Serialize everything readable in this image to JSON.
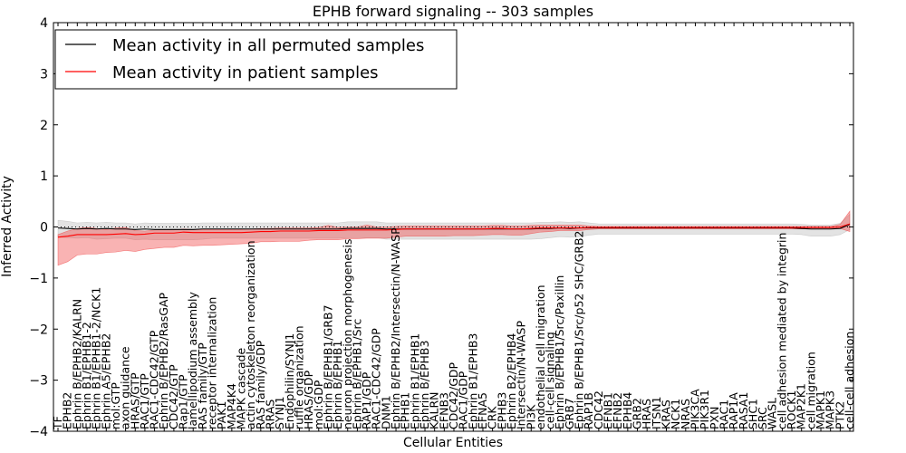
{
  "chart_data": {
    "type": "line",
    "title": "EPHB forward signaling -- 303 samples",
    "xlabel": "Cellular Entities",
    "ylabel": "Inferred Activity",
    "ylim": [
      -4,
      4
    ],
    "yticks": [
      "−4",
      "−3",
      "−2",
      "−1",
      "0",
      "1",
      "2",
      "3",
      "4"
    ],
    "ytick_values": [
      -4,
      -3,
      -2,
      -1,
      0,
      1,
      2,
      3,
      4
    ],
    "grid": false,
    "legend_position": "top-left",
    "categories": [
      "TF",
      "EPHB2",
      "Ephrin B/EPHB2/KALRN",
      "Ephrin B1/EPHB1-2",
      "Ephrin B1/EPHB1-2/NCK1",
      "Ephrin A5/EPHB2",
      "mol:GTP",
      "axon guidance",
      "HRAS/GTP",
      "RAC1/GTP",
      "RAC1-CDC42/GTP",
      "Ephrin B/EPHB2/RasGAP",
      "CDC42/GTP",
      "Rap1/GTP",
      "lamellipodium assembly",
      "RAS family/GTP",
      "receptor internalization",
      "PAK1",
      "MAP4K4",
      "MAPK cascade",
      "actin cytoskeleton reorganization",
      "RAS family/GDP",
      "RRAS",
      "SYNJ1",
      "Endophilin/SYNJ1",
      "ruffle organization",
      "HRAS/GDP",
      "mol:GDP",
      "Ephrin B/EPHB1/GRB7",
      "Ephrin B/EPHB1",
      "neuron projection morphogenesis",
      "Ephrin B/EPHB1/Src",
      "RAP1/GDP",
      "RAC1-CDC42/GDP",
      "DNM1",
      "Ephrin B/EPHB2/Intersectin/N-WASP",
      "EPHB1",
      "Ephrin B1/EPHB1",
      "Ephrin B/EPHB3",
      "KALRN",
      "EFNB3",
      "CDC42/GDP",
      "RAC1/GDP",
      "Ephrin B1/EPHB3",
      "EFNA5",
      "CRK",
      "EPHB3",
      "Ephrin B2/EPHB4",
      "Intersectin/N-WASP",
      "PI3K",
      "endothelial cell migration",
      "cell-cell signaling",
      "Ephrin B/EPHB1/Src/Paxillin",
      "GRB7",
      "Ephrin B/EPHB1/Src/p52 SHC/GRB2",
      "RAP1B",
      "CDC42",
      "EFNB1",
      "EFNB2",
      "EPHB4",
      "GRB2",
      "HRAS",
      "ITSN1",
      "KRAS",
      "NCK1",
      "NRAS",
      "PIK3CA",
      "PIK3R1",
      "PXN",
      "RAC1",
      "RAP1A",
      "RASA1",
      "SHC1",
      "SRC",
      "WASL",
      "cell adhesion mediated by integrin",
      "ROCK1",
      "MAP2K1",
      "cell migration",
      "MAPK1",
      "MAPK3",
      "PTK2",
      "cell-cell adhesion"
    ],
    "series": [
      {
        "name": "Mean activity in all permuted samples",
        "color": "#000000",
        "values": [
          -0.02,
          -0.03,
          -0.04,
          -0.03,
          -0.04,
          -0.03,
          -0.04,
          -0.04,
          -0.05,
          -0.04,
          -0.05,
          -0.05,
          -0.05,
          -0.05,
          -0.05,
          -0.04,
          -0.04,
          -0.04,
          -0.04,
          -0.04,
          -0.04,
          -0.04,
          -0.04,
          -0.04,
          -0.04,
          -0.04,
          -0.04,
          -0.04,
          -0.04,
          -0.04,
          -0.03,
          -0.03,
          -0.03,
          -0.03,
          -0.04,
          -0.04,
          -0.04,
          -0.04,
          -0.04,
          -0.04,
          -0.04,
          -0.04,
          -0.04,
          -0.04,
          -0.04,
          -0.04,
          -0.04,
          -0.04,
          -0.04,
          -0.04,
          -0.03,
          -0.03,
          -0.02,
          -0.03,
          -0.02,
          -0.02,
          -0.02,
          -0.02,
          -0.02,
          -0.02,
          -0.02,
          -0.02,
          -0.02,
          -0.02,
          -0.02,
          -0.02,
          -0.02,
          -0.02,
          -0.02,
          -0.02,
          -0.02,
          -0.02,
          -0.02,
          -0.02,
          -0.02,
          -0.02,
          -0.02,
          -0.03,
          -0.04,
          -0.04,
          -0.04,
          -0.03,
          0.05
        ],
        "std_lower": [
          -0.18,
          -0.18,
          -0.18,
          -0.18,
          -0.2,
          -0.2,
          -0.18,
          -0.18,
          -0.2,
          -0.2,
          -0.2,
          -0.2,
          -0.2,
          -0.2,
          -0.2,
          -0.2,
          -0.18,
          -0.18,
          -0.18,
          -0.18,
          -0.18,
          -0.18,
          -0.18,
          -0.18,
          -0.18,
          -0.18,
          -0.18,
          -0.18,
          -0.18,
          -0.18,
          -0.18,
          -0.18,
          -0.18,
          -0.18,
          -0.2,
          -0.2,
          -0.2,
          -0.2,
          -0.2,
          -0.2,
          -0.2,
          -0.2,
          -0.2,
          -0.2,
          -0.2,
          -0.2,
          -0.2,
          -0.2,
          -0.2,
          -0.2,
          -0.2,
          -0.18,
          -0.17,
          -0.17,
          -0.17,
          -0.14,
          -0.12,
          -0.12,
          -0.12,
          -0.12,
          -0.12,
          -0.12,
          -0.12,
          -0.12,
          -0.12,
          -0.12,
          -0.12,
          -0.12,
          -0.12,
          -0.12,
          -0.12,
          -0.12,
          -0.12,
          -0.12,
          -0.12,
          -0.12,
          -0.12,
          -0.12,
          -0.14,
          -0.14,
          -0.14,
          -0.12,
          -0.1
        ],
        "std_upper": [
          0.15,
          0.14,
          0.12,
          0.12,
          0.12,
          0.12,
          0.12,
          0.12,
          0.11,
          0.12,
          0.12,
          0.12,
          0.12,
          0.12,
          0.12,
          0.12,
          0.12,
          0.12,
          0.12,
          0.12,
          0.12,
          0.12,
          0.12,
          0.12,
          0.12,
          0.12,
          0.12,
          0.12,
          0.12,
          0.12,
          0.13,
          0.13,
          0.13,
          0.13,
          0.12,
          0.12,
          0.12,
          0.12,
          0.12,
          0.12,
          0.12,
          0.12,
          0.12,
          0.12,
          0.12,
          0.12,
          0.12,
          0.12,
          0.12,
          0.12,
          0.12,
          0.12,
          0.12,
          0.12,
          0.12,
          0.1,
          0.08,
          0.08,
          0.08,
          0.08,
          0.08,
          0.08,
          0.08,
          0.08,
          0.08,
          0.08,
          0.08,
          0.08,
          0.08,
          0.08,
          0.08,
          0.08,
          0.08,
          0.08,
          0.08,
          0.08,
          0.08,
          0.08,
          0.08,
          0.08,
          0.08,
          0.1,
          0.2
        ]
      },
      {
        "name": "Mean activity in patient samples",
        "color": "#ff0000",
        "values": [
          -0.2,
          -0.18,
          -0.15,
          -0.15,
          -0.15,
          -0.15,
          -0.14,
          -0.13,
          -0.15,
          -0.14,
          -0.12,
          -0.12,
          -0.12,
          -0.1,
          -0.11,
          -0.11,
          -0.11,
          -0.11,
          -0.11,
          -0.11,
          -0.1,
          -0.09,
          -0.09,
          -0.08,
          -0.08,
          -0.08,
          -0.08,
          -0.07,
          -0.07,
          -0.07,
          -0.06,
          -0.06,
          -0.06,
          -0.06,
          -0.06,
          -0.05,
          -0.04,
          -0.04,
          -0.04,
          -0.04,
          -0.04,
          -0.04,
          -0.04,
          -0.04,
          -0.04,
          -0.03,
          -0.03,
          -0.04,
          -0.04,
          -0.03,
          -0.02,
          -0.02,
          -0.02,
          -0.02,
          -0.02,
          -0.01,
          -0.01,
          -0.01,
          -0.01,
          -0.01,
          -0.01,
          -0.01,
          -0.01,
          -0.01,
          -0.01,
          -0.01,
          -0.01,
          -0.01,
          -0.01,
          -0.01,
          -0.01,
          -0.01,
          -0.01,
          -0.01,
          -0.01,
          -0.01,
          -0.01,
          -0.01,
          -0.01,
          -0.01,
          -0.01,
          0.0,
          0.06
        ],
        "std_lower": [
          -0.55,
          -0.5,
          -0.4,
          -0.38,
          -0.38,
          -0.35,
          -0.35,
          -0.33,
          -0.33,
          -0.3,
          -0.3,
          -0.28,
          -0.28,
          -0.26,
          -0.26,
          -0.25,
          -0.25,
          -0.24,
          -0.23,
          -0.22,
          -0.22,
          -0.2,
          -0.2,
          -0.2,
          -0.2,
          -0.2,
          -0.18,
          -0.18,
          -0.18,
          -0.18,
          -0.17,
          -0.17,
          -0.16,
          -0.16,
          -0.16,
          -0.15,
          -0.14,
          -0.14,
          -0.14,
          -0.14,
          -0.14,
          -0.13,
          -0.13,
          -0.13,
          -0.12,
          -0.12,
          -0.12,
          -0.12,
          -0.12,
          -0.1,
          -0.08,
          -0.07,
          -0.05,
          -0.05,
          -0.05,
          -0.04,
          -0.03,
          -0.03,
          -0.03,
          -0.03,
          -0.03,
          -0.03,
          -0.03,
          -0.03,
          -0.03,
          -0.03,
          -0.03,
          -0.03,
          -0.03,
          -0.03,
          -0.03,
          -0.03,
          -0.03,
          -0.03,
          -0.03,
          -0.03,
          -0.03,
          -0.03,
          -0.03,
          -0.03,
          -0.03,
          -0.03,
          -0.15
        ],
        "std_upper": [
          0.05,
          0.1,
          0.12,
          0.14,
          0.12,
          0.1,
          0.12,
          0.12,
          0.08,
          0.06,
          0.06,
          0.06,
          0.06,
          0.06,
          0.06,
          0.06,
          0.06,
          0.06,
          0.06,
          0.06,
          0.06,
          0.06,
          0.06,
          0.06,
          0.06,
          0.06,
          0.06,
          0.06,
          0.1,
          0.06,
          0.06,
          0.06,
          0.1,
          0.06,
          0.06,
          0.06,
          0.06,
          0.06,
          0.06,
          0.06,
          0.06,
          0.06,
          0.06,
          0.06,
          0.06,
          0.06,
          0.06,
          0.06,
          0.06,
          0.06,
          0.06,
          0.06,
          0.06,
          0.06,
          0.06,
          0.03,
          0.02,
          0.02,
          0.02,
          0.02,
          0.02,
          0.02,
          0.02,
          0.02,
          0.02,
          0.02,
          0.02,
          0.02,
          0.02,
          0.02,
          0.02,
          0.02,
          0.02,
          0.02,
          0.02,
          0.02,
          0.02,
          0.02,
          0.02,
          0.02,
          0.02,
          0.05,
          0.25
        ]
      }
    ],
    "reference_line": {
      "y": 0,
      "style": "dotted",
      "color": "#000000"
    }
  }
}
